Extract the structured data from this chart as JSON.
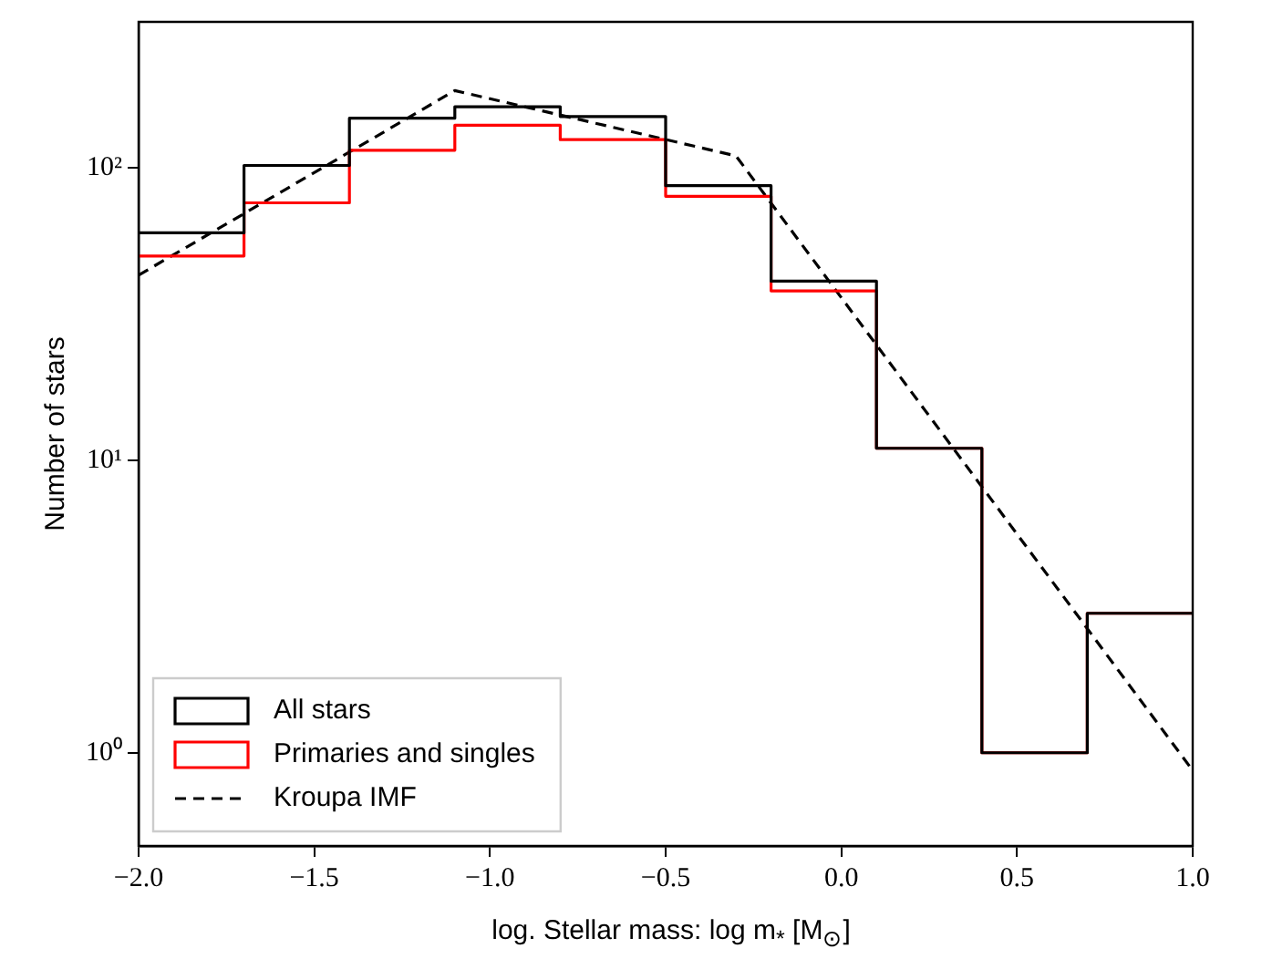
{
  "chart_data": {
    "type": "histogram",
    "xlabel": "log. Stellar mass: log m$_{*}$ [M$_{⊙}$]",
    "ylabel": "Number of stars",
    "bins": [
      -2,
      -1.7,
      -1.4,
      -1.1,
      -0.8,
      -0.5,
      -0.2,
      0.1,
      0.4,
      0.7,
      1.0
    ],
    "series": [
      {
        "name": "All stars",
        "color": "#000000",
        "values": [
          60,
          102,
          148,
          162,
          150,
          87,
          41,
          11,
          1,
          3
        ]
      },
      {
        "name": "Primaries and singles",
        "color": "#ff0000",
        "values": [
          50,
          76,
          115,
          140,
          125,
          80,
          38,
          11,
          1,
          3
        ]
      },
      {
        "name": "Kroupa IMF",
        "type": "line",
        "color": "#000000",
        "line_style": "dashed",
        "x": [
          -2,
          -1.1,
          -0.3,
          1.0
        ],
        "values": [
          43,
          184,
          110,
          0.87
        ]
      }
    ],
    "log": "y",
    "xlim": [
      -2,
      1
    ],
    "ylim": [
      0.48,
      316
    ],
    "xticks": [
      {
        "value": -2,
        "label": "−2.0"
      },
      {
        "value": -1.5,
        "label": "−1.5"
      },
      {
        "value": -1,
        "label": "−1.0"
      },
      {
        "value": -0.5,
        "label": "−0.5"
      },
      {
        "value": 0,
        "label": "0.0"
      },
      {
        "value": 0.5,
        "label": "0.5"
      },
      {
        "value": 1,
        "label": "1.0"
      }
    ],
    "yticks": [
      {
        "value": 1,
        "label": "10⁰"
      },
      {
        "value": 10,
        "label": "10¹"
      },
      {
        "value": 100,
        "label": "10²"
      }
    ],
    "grid": false,
    "legend": "bottom left",
    "marker": "none"
  }
}
